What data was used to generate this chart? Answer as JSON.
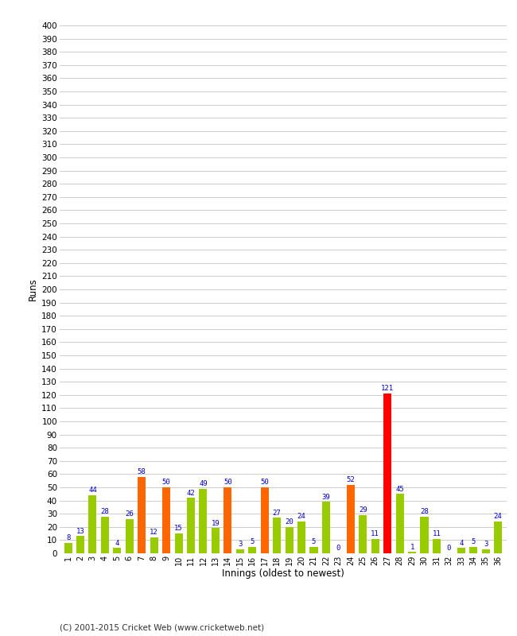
{
  "innings": [
    1,
    2,
    3,
    4,
    5,
    6,
    7,
    8,
    9,
    10,
    11,
    12,
    13,
    14,
    15,
    16,
    17,
    18,
    19,
    20,
    21,
    22,
    23,
    24,
    25,
    26,
    27,
    28,
    29,
    30,
    31,
    32,
    33,
    34,
    35,
    36
  ],
  "values": [
    8,
    13,
    44,
    28,
    4,
    26,
    58,
    12,
    50,
    15,
    42,
    49,
    19,
    50,
    3,
    5,
    50,
    27,
    20,
    24,
    5,
    39,
    0,
    52,
    29,
    11,
    121,
    45,
    1,
    28,
    11,
    0,
    4,
    5,
    3,
    24
  ],
  "colors": [
    "#99cc00",
    "#99cc00",
    "#99cc00",
    "#99cc00",
    "#99cc00",
    "#99cc00",
    "#ff6600",
    "#99cc00",
    "#ff6600",
    "#99cc00",
    "#99cc00",
    "#99cc00",
    "#99cc00",
    "#ff6600",
    "#99cc00",
    "#99cc00",
    "#ff6600",
    "#99cc00",
    "#99cc00",
    "#99cc00",
    "#99cc00",
    "#99cc00",
    "#99cc00",
    "#ff6600",
    "#99cc00",
    "#99cc00",
    "#ff0000",
    "#99cc00",
    "#99cc00",
    "#99cc00",
    "#99cc00",
    "#99cc00",
    "#99cc00",
    "#99cc00",
    "#99cc00",
    "#99cc00"
  ],
  "xlabel": "Innings (oldest to newest)",
  "ylabel": "Runs",
  "ylim": [
    0,
    400
  ],
  "yticks": [
    0,
    10,
    20,
    30,
    40,
    50,
    60,
    70,
    80,
    90,
    100,
    110,
    120,
    130,
    140,
    150,
    160,
    170,
    180,
    190,
    200,
    210,
    220,
    230,
    240,
    250,
    260,
    270,
    280,
    290,
    300,
    310,
    320,
    330,
    340,
    350,
    360,
    370,
    380,
    390,
    400
  ],
  "footer": "(C) 2001-2015 Cricket Web (www.cricketweb.net)",
  "label_color": "#0000cc",
  "background_color": "#ffffff",
  "grid_color": "#cccccc",
  "bar_width": 0.65
}
